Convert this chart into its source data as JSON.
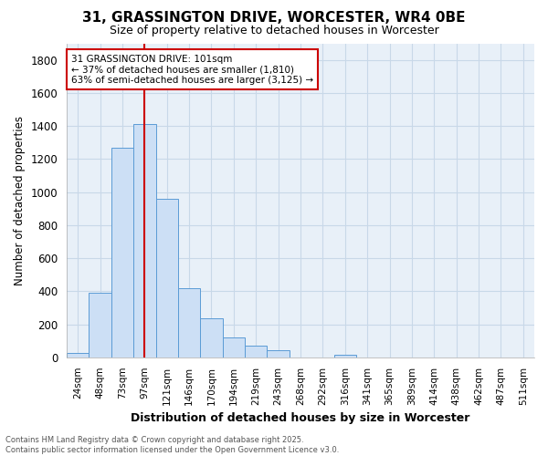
{
  "title": "31, GRASSINGTON DRIVE, WORCESTER, WR4 0BE",
  "subtitle": "Size of property relative to detached houses in Worcester",
  "xlabel": "Distribution of detached houses by size in Worcester",
  "ylabel": "Number of detached properties",
  "bar_labels": [
    "24sqm",
    "48sqm",
    "73sqm",
    "97sqm",
    "121sqm",
    "146sqm",
    "170sqm",
    "194sqm",
    "219sqm",
    "243sqm",
    "268sqm",
    "292sqm",
    "316sqm",
    "341sqm",
    "365sqm",
    "389sqm",
    "414sqm",
    "438sqm",
    "462sqm",
    "487sqm",
    "511sqm"
  ],
  "bar_values": [
    25,
    390,
    1270,
    1410,
    960,
    420,
    235,
    120,
    70,
    45,
    0,
    0,
    15,
    0,
    0,
    0,
    0,
    0,
    0,
    0,
    0
  ],
  "bar_color": "#ccdff5",
  "bar_edge_color": "#5b9bd5",
  "grid_color": "#c8d8e8",
  "background_color": "#ffffff",
  "plot_bg_color": "#e8f0f8",
  "red_line_x": 3.0,
  "annotation_text": "31 GRASSINGTON DRIVE: 101sqm\n← 37% of detached houses are smaller (1,810)\n63% of semi-detached houses are larger (3,125) →",
  "annotation_box_color": "#ffffff",
  "annotation_border_color": "#cc0000",
  "footer_line1": "Contains HM Land Registry data © Crown copyright and database right 2025.",
  "footer_line2": "Contains public sector information licensed under the Open Government Licence v3.0.",
  "ylim": [
    0,
    1900
  ],
  "yticks": [
    0,
    200,
    400,
    600,
    800,
    1000,
    1200,
    1400,
    1600,
    1800
  ]
}
